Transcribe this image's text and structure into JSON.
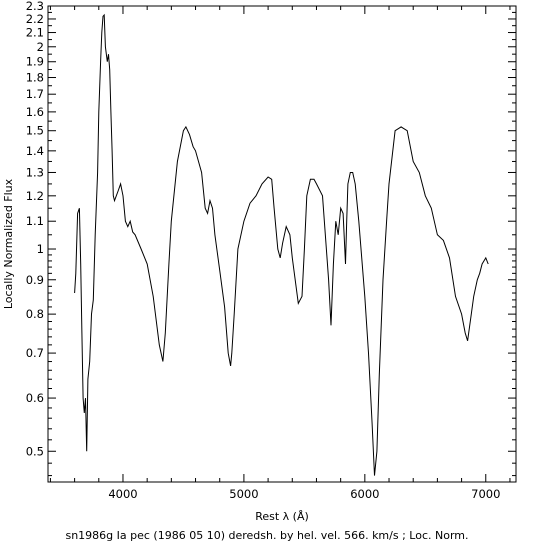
{
  "chart_data": {
    "type": "line",
    "title": "",
    "xlabel": "Rest λ (Å)",
    "ylabel": "Locally Normalized Flux",
    "caption": "sn1986g Ia pec (1986 05 10) deredsh. by hel. vel.   566. km/s ;  Loc. Norm.",
    "xlim": [
      3380,
      7250
    ],
    "ylim": [
      0.45,
      2.3
    ],
    "yscale": "log",
    "grid": false,
    "legend": "none",
    "x_ticks": [
      4000,
      5000,
      6000,
      7000
    ],
    "y_ticks": [
      0.5,
      0.6,
      0.7,
      0.8,
      0.9,
      1,
      1.1,
      1.2,
      1.3,
      1.4,
      1.5,
      1.6,
      1.7,
      1.8,
      1.9,
      2,
      2.1,
      2.2,
      2.3
    ],
    "line_color": "#000000",
    "series": [
      {
        "name": "",
        "x": [
          3600,
          3610,
          3625,
          3640,
          3650,
          3660,
          3670,
          3680,
          3690,
          3700,
          3710,
          3725,
          3740,
          3755,
          3770,
          3790,
          3800,
          3815,
          3825,
          3835,
          3845,
          3855,
          3870,
          3880,
          3890,
          3900,
          3910,
          3920,
          3930,
          3945,
          3960,
          3980,
          4000,
          4020,
          4040,
          4060,
          4080,
          4100,
          4150,
          4200,
          4250,
          4300,
          4330,
          4350,
          4380,
          4400,
          4450,
          4500,
          4520,
          4550,
          4580,
          4600,
          4650,
          4680,
          4700,
          4720,
          4740,
          4760,
          4800,
          4840,
          4870,
          4890,
          4900,
          4920,
          4950,
          5000,
          5050,
          5100,
          5150,
          5200,
          5230,
          5250,
          5280,
          5300,
          5320,
          5350,
          5380,
          5400,
          5450,
          5480,
          5500,
          5520,
          5550,
          5580,
          5600,
          5650,
          5700,
          5720,
          5740,
          5760,
          5780,
          5800,
          5820,
          5840,
          5850,
          5860,
          5880,
          5900,
          5920,
          5950,
          6000,
          6030,
          6060,
          6080,
          6100,
          6120,
          6150,
          6180,
          6200,
          6250,
          6300,
          6350,
          6400,
          6450,
          6500,
          6550,
          6600,
          6650,
          6700,
          6750,
          6800,
          6830,
          6850,
          6880,
          6900,
          6930,
          6950,
          6970,
          7000,
          7020
        ],
        "y": [
          0.86,
          0.92,
          1.13,
          1.15,
          0.95,
          0.75,
          0.6,
          0.57,
          0.6,
          0.5,
          0.64,
          0.68,
          0.8,
          0.84,
          1.05,
          1.3,
          1.6,
          1.9,
          2.1,
          2.22,
          2.23,
          2.0,
          1.9,
          1.95,
          1.85,
          1.6,
          1.4,
          1.2,
          1.18,
          1.2,
          1.22,
          1.25,
          1.2,
          1.1,
          1.08,
          1.1,
          1.06,
          1.05,
          1.0,
          0.95,
          0.85,
          0.72,
          0.68,
          0.75,
          0.95,
          1.1,
          1.35,
          1.5,
          1.52,
          1.48,
          1.42,
          1.4,
          1.3,
          1.15,
          1.13,
          1.18,
          1.15,
          1.05,
          0.93,
          0.82,
          0.7,
          0.67,
          0.7,
          0.8,
          1.0,
          1.1,
          1.17,
          1.2,
          1.25,
          1.28,
          1.27,
          1.15,
          1.0,
          0.97,
          1.02,
          1.08,
          1.05,
          0.97,
          0.83,
          0.85,
          1.0,
          1.2,
          1.27,
          1.27,
          1.25,
          1.2,
          0.9,
          0.77,
          0.95,
          1.1,
          1.05,
          1.15,
          1.13,
          0.95,
          1.1,
          1.25,
          1.3,
          1.3,
          1.25,
          1.1,
          0.85,
          0.7,
          0.55,
          0.46,
          0.5,
          0.65,
          0.9,
          1.1,
          1.25,
          1.5,
          1.52,
          1.5,
          1.35,
          1.3,
          1.2,
          1.15,
          1.05,
          1.03,
          0.97,
          0.85,
          0.8,
          0.75,
          0.73,
          0.8,
          0.85,
          0.9,
          0.92,
          0.95,
          0.97,
          0.95
        ]
      }
    ]
  }
}
